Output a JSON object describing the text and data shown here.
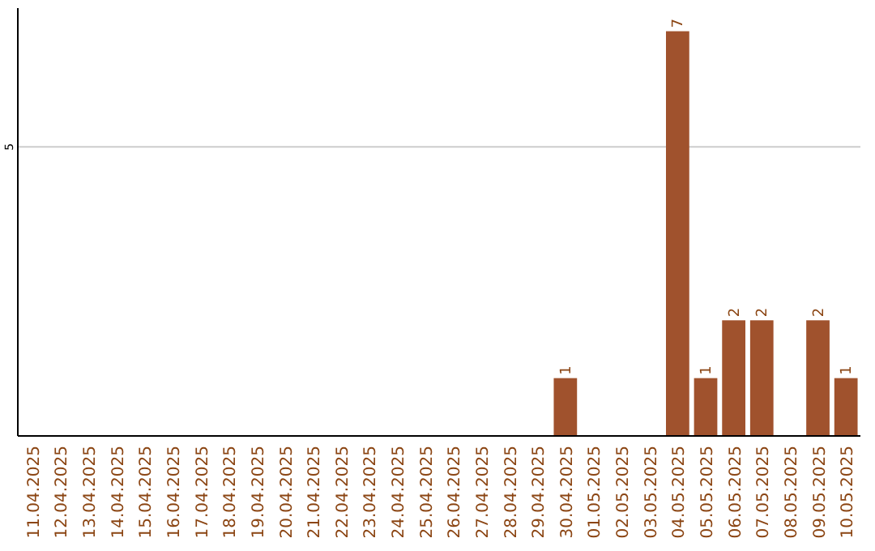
{
  "chart_data": {
    "type": "bar",
    "categories": [
      "11.04.2025",
      "12.04.2025",
      "13.04.2025",
      "14.04.2025",
      "15.04.2025",
      "16.04.2025",
      "17.04.2025",
      "18.04.2025",
      "19.04.2025",
      "20.04.2025",
      "21.04.2025",
      "22.04.2025",
      "23.04.2025",
      "24.04.2025",
      "25.04.2025",
      "26.04.2025",
      "27.04.2025",
      "28.04.2025",
      "29.04.2025",
      "30.04.2025",
      "01.05.2025",
      "02.05.2025",
      "03.05.2025",
      "04.05.2025",
      "05.05.2025",
      "06.05.2025",
      "07.05.2025",
      "08.05.2025",
      "09.05.2025",
      "10.05.2025"
    ],
    "values": [
      null,
      null,
      null,
      null,
      null,
      null,
      null,
      null,
      null,
      null,
      null,
      null,
      null,
      null,
      null,
      null,
      null,
      null,
      null,
      1,
      null,
      null,
      null,
      7,
      1,
      2,
      2,
      null,
      2,
      1
    ],
    "data_labels": true,
    "color": "#a0522d",
    "ylim": [
      0,
      7.4
    ],
    "yticks": [
      5
    ],
    "grid": "y"
  }
}
